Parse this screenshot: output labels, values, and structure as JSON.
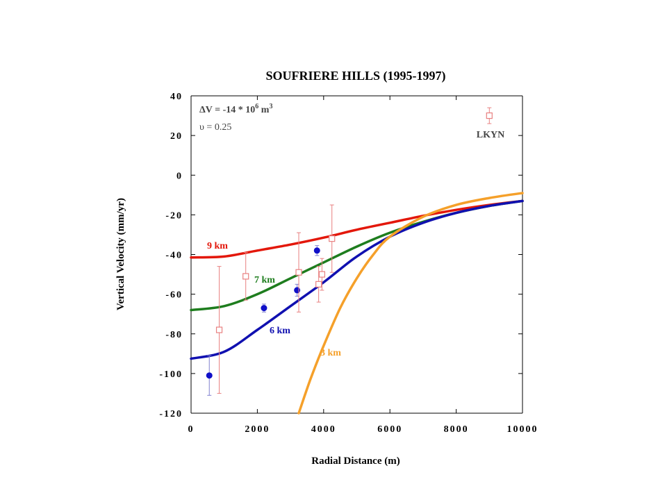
{
  "chart_data": {
    "type": "scatter",
    "title": "SOUFRIERE  HILLS  (1995-1997)",
    "xlabel": "Radial  Distance  (m)",
    "ylabel": "Vertical  Velocity  (mm/yr)",
    "xlim": [
      0,
      10000
    ],
    "ylim": [
      -120,
      40
    ],
    "x_ticks": [
      0,
      2000,
      4000,
      6000,
      8000,
      10000
    ],
    "x_tick_labels": [
      "0",
      "2000",
      "4000",
      "6000",
      "8000",
      "10000"
    ],
    "y_ticks": [
      40,
      20,
      0,
      -20,
      -40,
      -60,
      -80,
      -100,
      -120
    ],
    "y_tick_labels": [
      "40",
      "20",
      "0",
      "-20",
      "-40",
      "-60",
      "-80",
      "-100",
      "-120"
    ],
    "grid": false,
    "annotations": {
      "dv_prefix": "ΔV  =  -14  *  10",
      "dv_exp": "6",
      "dv_unit": " m",
      "dv_unit_exp": "3",
      "poisson": "υ = 0.25",
      "station": "LKYN"
    },
    "curves": [
      {
        "label": "9 km",
        "depth_km": 9,
        "color": "#e3170a",
        "x": [
          0,
          1000,
          2000,
          3000,
          4000,
          5000,
          6000,
          7000,
          8000,
          9000,
          10000
        ],
        "y": [
          -41.5,
          -41,
          -38,
          -35,
          -31.5,
          -27.5,
          -24,
          -20.5,
          -17.5,
          -15,
          -13
        ]
      },
      {
        "label": "7 km",
        "depth_km": 7,
        "color": "#1e7d1e",
        "x": [
          0,
          1000,
          2000,
          3000,
          4000,
          5000,
          6000,
          7000,
          8000,
          9000,
          10000
        ],
        "y": [
          -68,
          -66,
          -60,
          -52,
          -44,
          -36,
          -29,
          -23.5,
          -19,
          -15.5,
          -13
        ]
      },
      {
        "label": "6 km",
        "depth_km": 6,
        "color": "#1010b0",
        "x": [
          0,
          1000,
          2000,
          3000,
          4000,
          5000,
          6000,
          7000,
          8000,
          9000,
          10000
        ],
        "y": [
          -92.5,
          -89,
          -78,
          -66,
          -54,
          -41,
          -31,
          -24,
          -19,
          -15.5,
          -13
        ]
      },
      {
        "label": "3 km",
        "depth_km": 3,
        "color": "#f5a02a",
        "x": [
          3250,
          3600,
          4000,
          4500,
          5000,
          5500,
          6000,
          7000,
          8000,
          9000,
          10000
        ],
        "y": [
          -120,
          -103,
          -86,
          -67,
          -52,
          -40,
          -31,
          -21,
          -15,
          -11.5,
          -9
        ]
      }
    ],
    "series": [
      {
        "name": "blue points",
        "color": "#1010c8",
        "marker": "filled-circle",
        "x": [
          550,
          2200,
          3200,
          3800
        ],
        "y": [
          -101,
          -67,
          -58,
          -38
        ],
        "err": [
          10,
          2,
          3,
          2.5
        ]
      },
      {
        "name": "red squares",
        "color": "#e88080",
        "marker": "open-square",
        "x": [
          850,
          1650,
          3250,
          3850,
          3950,
          4250,
          9000
        ],
        "y": [
          -78,
          -51,
          -49,
          -55,
          -50,
          -32,
          30
        ],
        "err": [
          32,
          12,
          20,
          9,
          8,
          17,
          4
        ]
      }
    ]
  }
}
